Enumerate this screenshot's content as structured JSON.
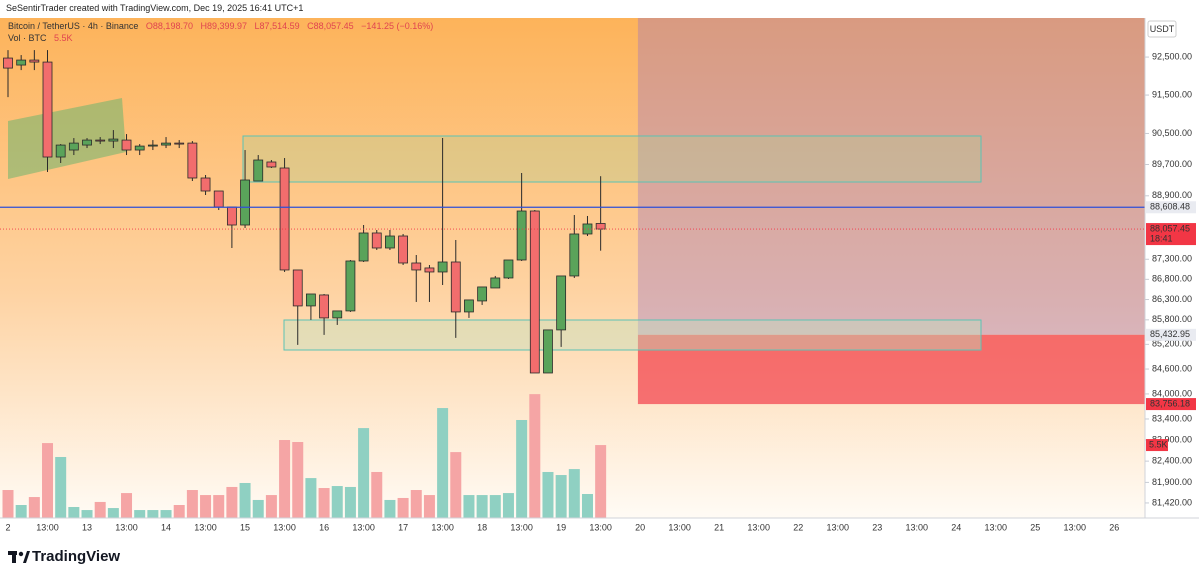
{
  "caption": "SeSentirTrader created with TradingView.com, Dec 19, 2025 16:41 UTC+1",
  "brand": "TradingView",
  "currency": "USDT",
  "chart_data": {
    "type": "candlestick",
    "log_scale": true,
    "ohlc_labels": [
      "O88,198.70",
      "H89,399.97",
      "L87,514.59",
      "C88,057.45",
      "−141.25 (−0.16%)"
    ],
    "categories": [
      "2",
      null,
      null,
      "13:00",
      null,
      null,
      "13",
      null,
      null,
      "13:00",
      null,
      null,
      "14",
      null,
      null,
      "13:00",
      null,
      null,
      "15",
      null,
      null,
      "13:00",
      null,
      null,
      "16",
      null,
      null,
      "13:00",
      null,
      null,
      "17",
      null,
      null,
      "13:00",
      null,
      null,
      "18",
      null,
      null,
      "13:00",
      null,
      null,
      "19",
      null,
      null,
      "13:00",
      null,
      null,
      "20",
      null,
      null,
      "13:00",
      null,
      null,
      "21",
      null,
      null,
      "13:00",
      null,
      null,
      "22",
      null,
      null,
      "13:00",
      null,
      null,
      "23",
      null,
      null,
      "13:00",
      null,
      null,
      "24",
      null,
      null,
      "13:00",
      null,
      null,
      "25",
      null,
      null,
      "13:00",
      null,
      null,
      "26",
      null,
      null
    ],
    "series": [
      {
        "name": "Bitcoin / TetherUS · 4h · Binance",
        "up_color": "#5aa35a",
        "down_color": "#f26d6d",
        "open": [
          92474,
          92289,
          92421,
          92368,
          89892,
          90072,
          90200,
          90329,
          90303,
          90329,
          90072,
          90174,
          90200,
          90251,
          90251,
          89354,
          89022,
          88615,
          88160,
          89277,
          89764,
          89610,
          87033,
          86142,
          86413,
          85847,
          86019,
          87257,
          87959,
          87582,
          87883,
          87207,
          87083,
          86983,
          87232,
          85994,
          86265,
          86586,
          86834,
          87282,
          88514,
          84505,
          85553,
          86884,
          87934,
          88198.7,
          null,
          null,
          null,
          null,
          null,
          null,
          null,
          null,
          null,
          null,
          null,
          null,
          null,
          null,
          null,
          null,
          null,
          null,
          null,
          null,
          null,
          null,
          null,
          null,
          null,
          null,
          null,
          null,
          null,
          null,
          null,
          null,
          null,
          null,
          null,
          null,
          null,
          null,
          null,
          null,
          null
        ],
        "high": [
          92685,
          92553,
          92685,
          92685,
          90226,
          90381,
          90381,
          90407,
          90588,
          90484,
          90226,
          90329,
          90407,
          90329,
          90303,
          89431,
          89022,
          88615,
          90072,
          89943,
          89815,
          89866,
          87033,
          86437,
          86437,
          86019,
          87282,
          88160,
          88034,
          88034,
          87934,
          87407,
          87157,
          90381,
          87783,
          86290,
          86611,
          86884,
          87282,
          89482,
          88539,
          85553,
          86884,
          88413,
          88388,
          89399.97,
          null,
          null,
          null,
          null,
          null,
          null,
          null,
          null,
          null,
          null,
          null,
          null,
          null,
          null,
          null,
          null,
          null,
          null,
          null,
          null,
          null,
          null,
          null,
          null,
          null,
          null,
          null,
          null,
          null,
          null,
          null,
          null,
          null,
          null,
          null,
          null,
          null,
          null,
          null,
          null,
          null
        ],
        "low": [
          91447,
          92156,
          92156,
          89508,
          89738,
          89943,
          90123,
          90226,
          90123,
          89943,
          89943,
          90072,
          90123,
          90123,
          89277,
          88920,
          88539,
          87582,
          88085,
          89277,
          89610,
          86983,
          85187,
          85798,
          85431,
          85675,
          85994,
          87232,
          87532,
          87532,
          87157,
          86240,
          86240,
          86660,
          85358,
          85847,
          86166,
          86586,
          86809,
          87257,
          84505,
          84505,
          85138,
          86834,
          87883,
          87514.59,
          null,
          null,
          null,
          null,
          null,
          null,
          null,
          null,
          null,
          null,
          null,
          null,
          null,
          null,
          null,
          null,
          null,
          null,
          null,
          null,
          null,
          null,
          null,
          null,
          null,
          null,
          null,
          null,
          null,
          null,
          null,
          null,
          null,
          null,
          null,
          null,
          null,
          null,
          null,
          null,
          null
        ],
        "close": [
          92209,
          92421,
          92368,
          89892,
          90200,
          90251,
          90329,
          90303,
          90355,
          90072,
          90174,
          90200,
          90251,
          90226,
          89354,
          89022,
          88615,
          88160,
          89303,
          89815,
          89636,
          87033,
          86142,
          86437,
          85847,
          86019,
          87257,
          87959,
          87582,
          87883,
          87207,
          87033,
          86983,
          87232,
          85994,
          86290,
          86611,
          86834,
          87282,
          88514,
          84505,
          85553,
          86884,
          87934,
          88186,
          88057.45,
          null,
          null,
          null,
          null,
          null,
          null,
          null,
          null,
          null,
          null,
          null,
          null,
          null,
          null,
          null,
          null,
          null,
          null,
          null,
          null,
          null,
          null,
          null,
          null,
          null,
          null,
          null,
          null,
          null,
          null,
          null,
          null,
          null,
          null,
          null,
          null,
          null,
          null,
          null,
          null,
          null
        ]
      }
    ],
    "volume": {
      "name": "Vol · BTC",
      "axis": "y2",
      "up_color": "#8fd0c2",
      "down_color": "#f5a5a5",
      "values": [
        2.11,
        0.98,
        1.58,
        5.65,
        4.6,
        0.83,
        0.6,
        1.21,
        0.75,
        1.88,
        0.6,
        0.6,
        0.6,
        0.98,
        2.11,
        1.73,
        1.73,
        2.34,
        2.64,
        1.36,
        1.73,
        5.88,
        5.73,
        3.01,
        2.26,
        2.41,
        2.34,
        6.78,
        3.47,
        1.36,
        1.51,
        2.11,
        1.73,
        8.29,
        4.97,
        1.73,
        1.73,
        1.73,
        1.88,
        7.39,
        9.34,
        3.47,
        3.24,
        3.69,
        1.81,
        5.5,
        null,
        null,
        null,
        null,
        null,
        null,
        null,
        null,
        null,
        null,
        null,
        null,
        null,
        null,
        null,
        null,
        null,
        null,
        null,
        null,
        null,
        null,
        null,
        null,
        null,
        null,
        null,
        null,
        null,
        null,
        null,
        null,
        null,
        null,
        null,
        null,
        null,
        null,
        null,
        null,
        null
      ],
      "value_labels": [
        null,
        null,
        null,
        null,
        null,
        null,
        null,
        null,
        null,
        null,
        null,
        null,
        null,
        null,
        null,
        null,
        null,
        null,
        null,
        null,
        null,
        null,
        null,
        null,
        null,
        null,
        null,
        null,
        null,
        null,
        null,
        null,
        null,
        null,
        null,
        null,
        null,
        null,
        null,
        null,
        null,
        null,
        null,
        null,
        null,
        "5.5K",
        null,
        null,
        null,
        null,
        null,
        null,
        null,
        null,
        null,
        null,
        null,
        null,
        null,
        null,
        null,
        null,
        null,
        null,
        null,
        null,
        null,
        null,
        null,
        null,
        null,
        null,
        null,
        null,
        null,
        null,
        null,
        null,
        null,
        null,
        null,
        null,
        null,
        null,
        null,
        null,
        null
      ]
    },
    "ylim": [
      81070,
      93540
    ],
    "y2lim": [
      0,
      37.7
    ],
    "yticks": [
      {
        "value": 92500,
        "label": "92,500.00"
      },
      {
        "value": 91500,
        "label": "91,500.00"
      },
      {
        "value": 90500,
        "label": "90,500.00"
      },
      {
        "value": 89700,
        "label": "89,700.00"
      },
      {
        "value": 88900,
        "label": "88,900.00"
      },
      {
        "value": 87300,
        "label": "87,300.00"
      },
      {
        "value": 86800,
        "label": "86,800.00"
      },
      {
        "value": 86300,
        "label": "86,300.00"
      },
      {
        "value": 85800,
        "label": "85,800.00"
      },
      {
        "value": 85200,
        "label": "85,200.00"
      },
      {
        "value": 84600,
        "label": "84,600.00"
      },
      {
        "value": 84000,
        "label": "84,000.00"
      },
      {
        "value": 83400,
        "label": "83,400.00"
      },
      {
        "value": 82900,
        "label": "82,900.00"
      },
      {
        "value": 82400,
        "label": "82,400.00"
      },
      {
        "value": 81900,
        "label": "81,900.00"
      },
      {
        "value": 81420,
        "label": "81,420.00"
      }
    ],
    "levels": [
      {
        "value": 88608.48,
        "label": "88,608.48",
        "color": "#2e4fd8",
        "badge": "#e9ebf1",
        "text": "#2e4fd8",
        "style": "solid"
      },
      {
        "value": 88057.45,
        "label": "88,057.45",
        "countdown": "18:41",
        "color": "#f23645",
        "badge": "#f23645",
        "text": "#ffffff",
        "style": "dotted"
      }
    ],
    "zones": [
      {
        "from": 47.83,
        "low": 85432.95,
        "label": "85,432.95",
        "color": "rgba(150,110,200,0.35)",
        "badge": "#e9ebf1",
        "text": "#131722"
      },
      {
        "from": 47.83,
        "low": 83756.18,
        "high": 85432.95,
        "label": "83,756.18",
        "color": "rgba(242,54,69,0.68)",
        "badge": "#f23645",
        "text": "#ffffff"
      }
    ]
  }
}
